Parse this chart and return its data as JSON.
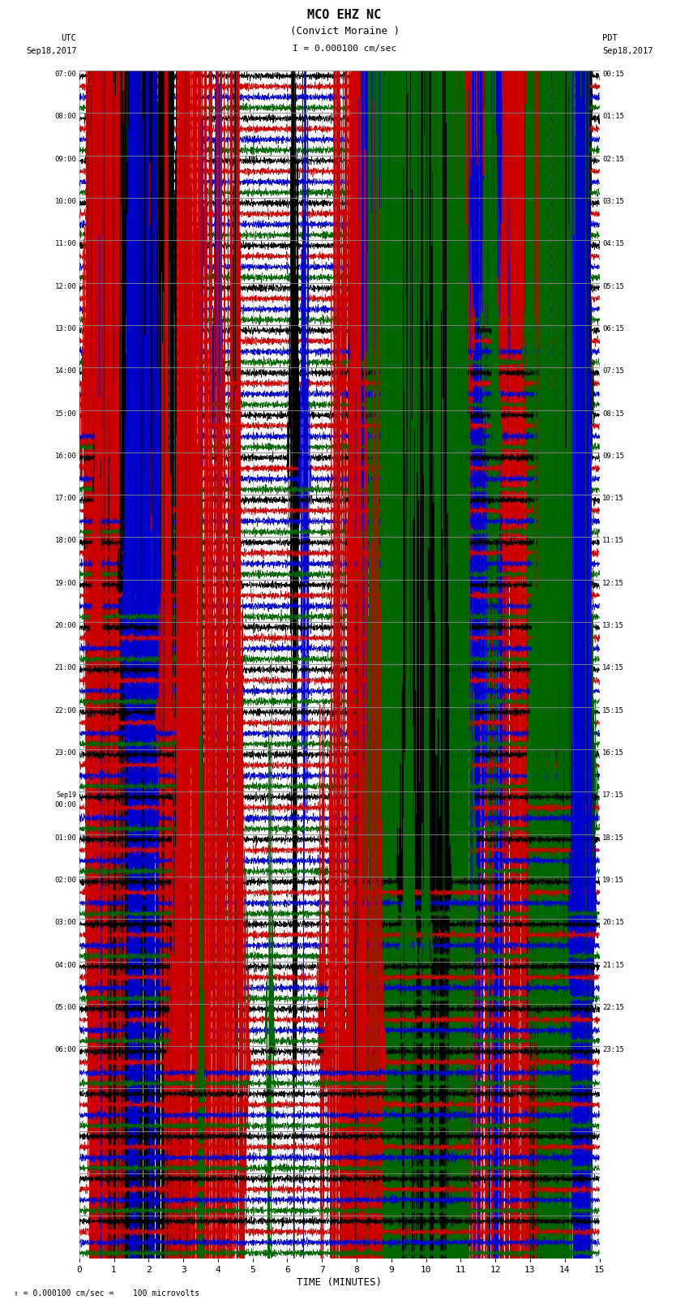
{
  "title_line1": "MCO EHZ NC",
  "title_line2": "(Convict Moraine )",
  "scale_label": "I = 0.000100 cm/sec",
  "footer_text": "= 0.000100 cm/sec =    100 microvolts",
  "left_header1": "UTC",
  "left_header2": "Sep18,2017",
  "right_header1": "PDT",
  "right_header2": "Sep18,2017",
  "xlabel": "TIME (MINUTES)",
  "xmin": 0,
  "xmax": 15,
  "xticks": [
    0,
    1,
    2,
    3,
    4,
    5,
    6,
    7,
    8,
    9,
    10,
    11,
    12,
    13,
    14,
    15
  ],
  "colors": [
    "#000000",
    "#cc0000",
    "#0000cc",
    "#006600"
  ],
  "bg_color": "#ffffff",
  "n_rows": 28,
  "traces_per_row": 4,
  "utc_hour_labels": [
    "07:00",
    "08:00",
    "09:00",
    "10:00",
    "11:00",
    "12:00",
    "13:00",
    "14:00",
    "15:00",
    "16:00",
    "17:00",
    "18:00",
    "19:00",
    "20:00",
    "21:00",
    "22:00",
    "23:00",
    "Sep19\n00:00",
    "01:00",
    "02:00",
    "03:00",
    "04:00",
    "05:00",
    "06:00",
    "",
    "",
    "",
    "",
    "",
    "",
    "",
    "",
    "",
    "",
    "",
    "",
    "",
    "",
    "",
    "",
    "",
    "",
    "",
    "",
    "",
    "",
    "",
    "",
    "",
    "",
    "",
    "",
    "",
    "",
    "",
    "",
    "",
    "",
    "",
    "",
    "",
    "",
    "",
    "",
    "",
    "",
    "",
    "",
    "",
    "",
    "",
    "",
    "",
    "",
    "",
    "",
    "",
    "",
    "",
    "",
    "",
    "",
    "",
    "",
    "",
    "",
    "",
    ""
  ],
  "pdt_hour_labels": [
    "00:15",
    "01:15",
    "02:15",
    "03:15",
    "04:15",
    "05:15",
    "06:15",
    "07:15",
    "08:15",
    "09:15",
    "10:15",
    "11:15",
    "12:15",
    "13:15",
    "14:15",
    "15:15",
    "16:15",
    "17:15",
    "18:15",
    "19:15",
    "20:15",
    "21:15",
    "22:15",
    "23:15",
    "",
    "",
    "",
    "",
    "",
    "",
    "",
    "",
    "",
    "",
    "",
    "",
    "",
    "",
    "",
    "",
    "",
    "",
    "",
    "",
    "",
    "",
    "",
    "",
    "",
    "",
    "",
    "",
    "",
    "",
    "",
    "",
    "",
    "",
    "",
    "",
    "",
    "",
    "",
    "",
    "",
    "",
    "",
    "",
    "",
    "",
    "",
    "",
    "",
    "",
    "",
    "",
    "",
    "",
    "",
    "",
    "",
    "",
    "",
    "",
    "",
    "",
    "",
    ""
  ]
}
